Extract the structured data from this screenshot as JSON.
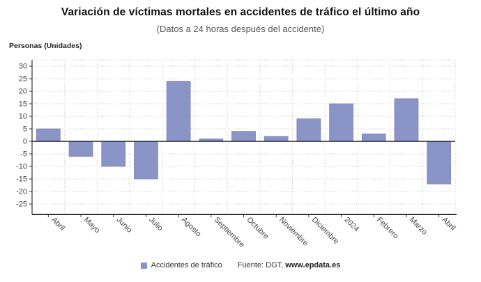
{
  "header": {
    "title": "Variación de víctimas mortales en accidentes de tráfico el último año",
    "subtitle": "(Datos a 24 horas después del accidente)"
  },
  "axis_unit_label": "Personas (Unidades)",
  "legend": {
    "label": "Accidentes de tráfico"
  },
  "source": {
    "prefix": "Fuente: DGT, ",
    "site": "www.epdata.es"
  },
  "colors": {
    "bar": "#8b94c6",
    "bar_edge": "#7d85b5",
    "grid": "#cccccc",
    "axis": "#333333",
    "zero_line": "#222222",
    "tick_label": "#444444",
    "title": "#111111",
    "subtitle": "#555555"
  },
  "chart_data": {
    "type": "bar",
    "title": "Variación de víctimas mortales en accidentes de tráfico el último año",
    "subtitle": "(Datos a 24 horas después del accidente)",
    "ylabel": "Personas (Unidades)",
    "xlabel": "",
    "categories": [
      "Abril",
      "Mayo",
      "Junio",
      "Julio",
      "Agosto",
      "Septiembre",
      "Octubre",
      "Noviembre",
      "Diciembre",
      "2024",
      "Febrero",
      "Marzo",
      "Abril"
    ],
    "series": [
      {
        "name": "Accidentes de tráfico",
        "values": [
          5,
          -6,
          -10,
          -15,
          24,
          1,
          4,
          2,
          9,
          15,
          3,
          17,
          -17
        ]
      }
    ],
    "ylim": [
      -25,
      30
    ],
    "ytick_step": 5,
    "grid": true,
    "x_label_rotation_deg": 45,
    "legend_position": "bottom"
  }
}
